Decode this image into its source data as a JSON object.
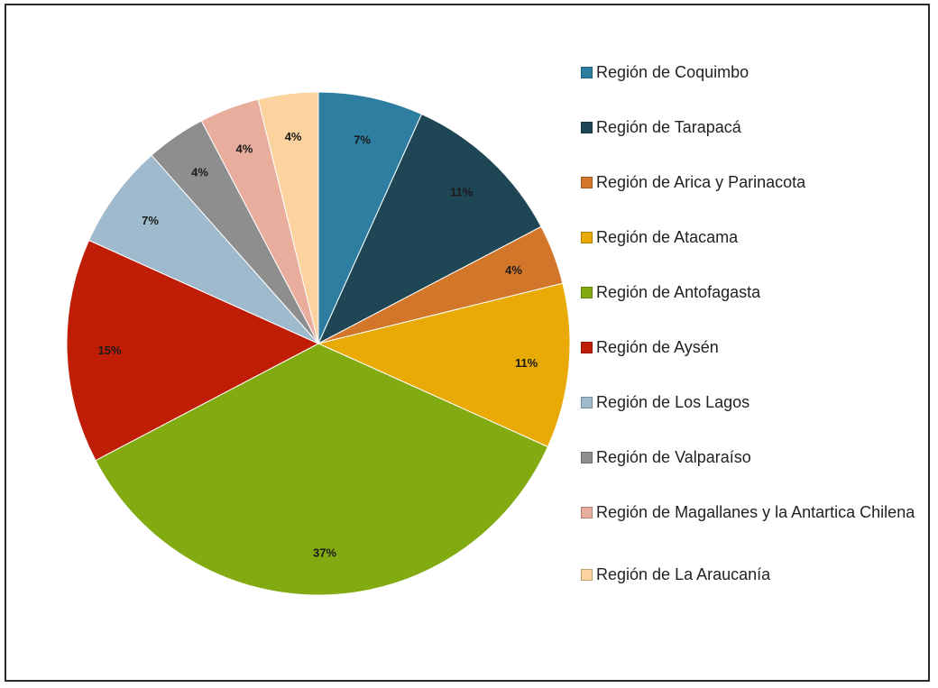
{
  "chart_data": {
    "type": "pie",
    "title": "",
    "legend_position": "right",
    "start_angle_deg": 0,
    "direction": "clockwise",
    "slices": [
      {
        "label": "Región de Coquimbo",
        "value": 7,
        "value_label": "7%",
        "color": "#2e7ea1"
      },
      {
        "label": "Región de Tarapacá",
        "value": 11,
        "value_label": "11%",
        "color": "#1e4654"
      },
      {
        "label": "Región de Arica y Parinacota",
        "value": 4,
        "value_label": "4%",
        "color": "#d2762a"
      },
      {
        "label": "Región de Atacama",
        "value": 11,
        "value_label": "11%",
        "color": "#e9aa06"
      },
      {
        "label": "Región de Antofagasta",
        "value": 37,
        "value_label": "37%",
        "color": "#82aa11"
      },
      {
        "label": "Región de Aysén",
        "value": 15,
        "value_label": "15%",
        "color": "#c01d07"
      },
      {
        "label": "Región de Los Lagos",
        "value": 7,
        "value_label": "7%",
        "color": "#9fbacc"
      },
      {
        "label": "Región de Valparaíso",
        "value": 4,
        "value_label": "4%",
        "color": "#8e8e8e"
      },
      {
        "label": "Región de Magallanes y la Antartica Chilena",
        "value": 4,
        "value_label": "4%",
        "color": "#e9ad9e"
      },
      {
        "label": "Región de La Araucanía",
        "value": 4,
        "value_label": "4%",
        "color": "#fcd39e"
      }
    ]
  }
}
